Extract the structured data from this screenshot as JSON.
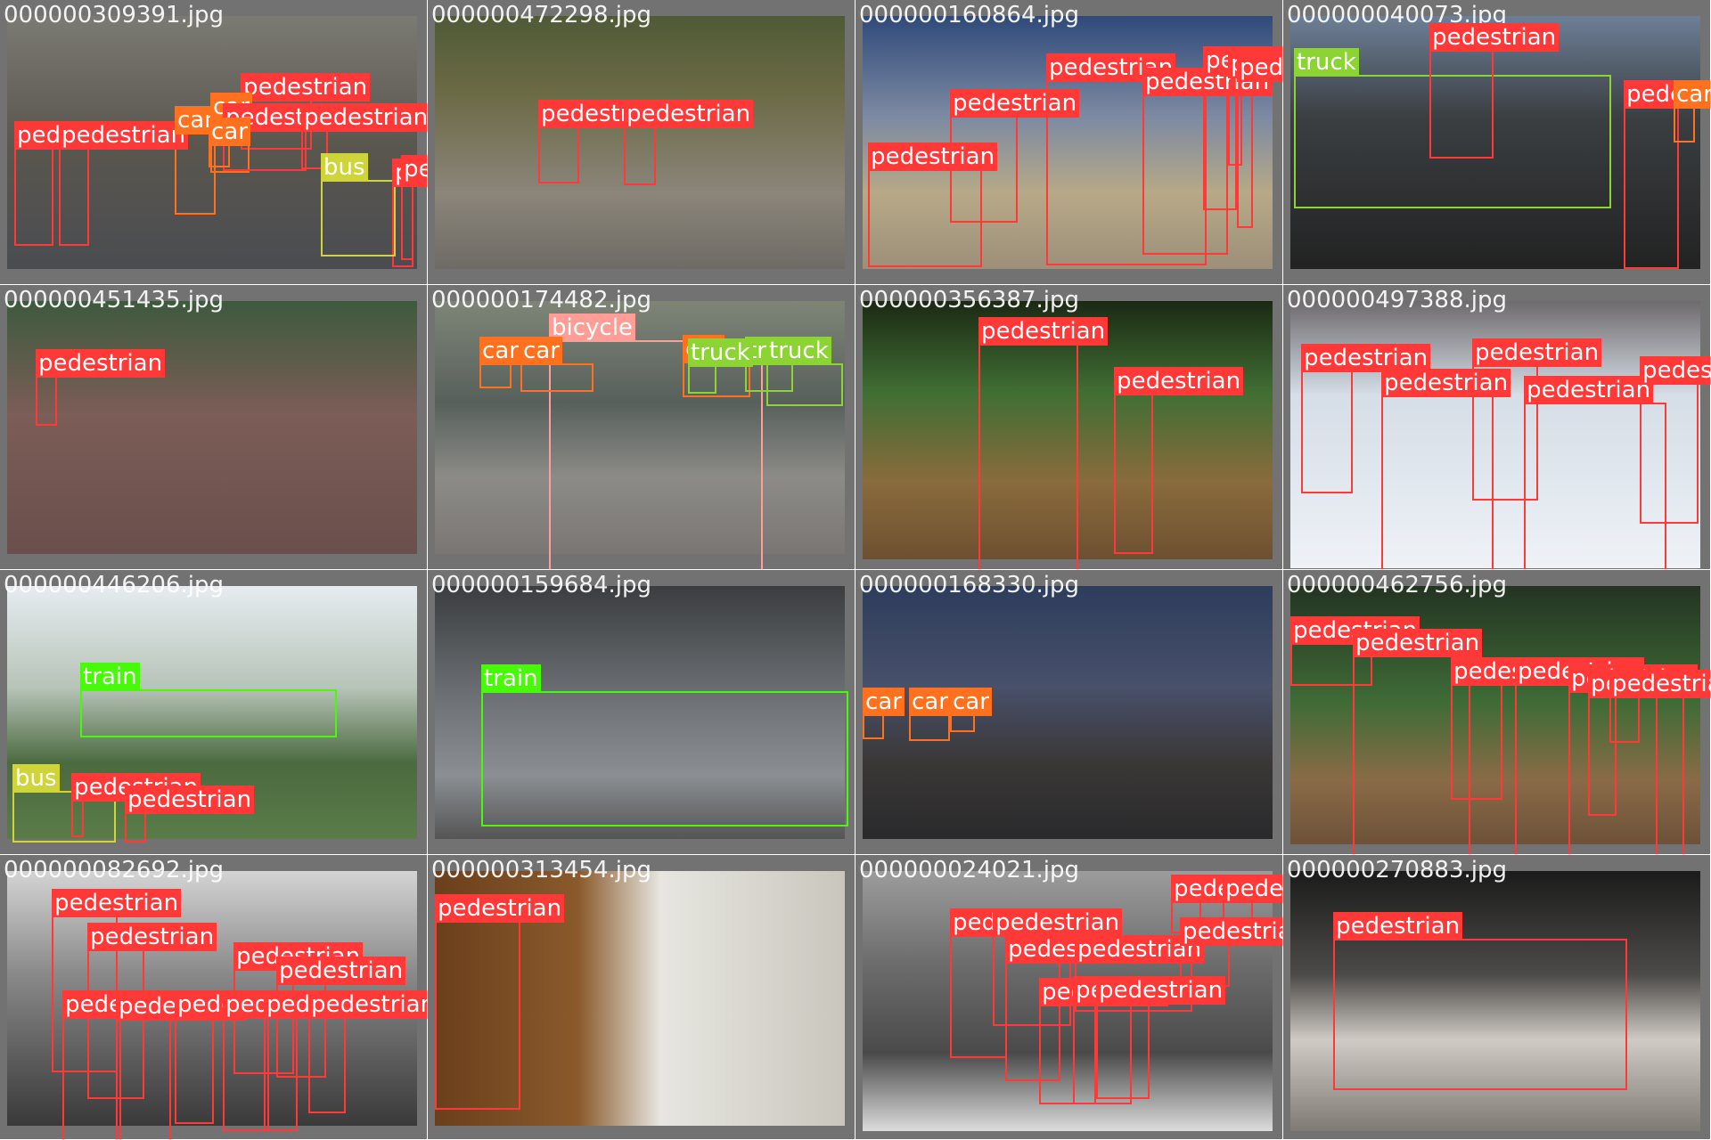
{
  "colors": {
    "pedestrian": "#ff3838",
    "car": "#ff701f",
    "truck": "#8bd434",
    "bus": "#ced43a",
    "train": "#48f90a",
    "bicycle": "#ff9d97",
    "tile_background": "#727272"
  },
  "tiles": [
    {
      "filename": "000000309391.jpg",
      "photo": "street",
      "boxes": [
        {
          "label": "pedestrian"
        },
        {
          "label": "pedestrian"
        },
        {
          "label": "car"
        },
        {
          "label": "pedestrian"
        },
        {
          "label": "car"
        },
        {
          "label": "pedestrian"
        },
        {
          "label": "pedestrian"
        },
        {
          "label": "car"
        },
        {
          "label": "pedestrian"
        },
        {
          "label": "bus"
        },
        {
          "label": "pedestrian"
        }
      ]
    },
    {
      "filename": "000000472298.jpg",
      "photo": "river",
      "boxes": [
        {
          "label": "pedestrian"
        },
        {
          "label": "pedestrian"
        }
      ]
    },
    {
      "filename": "000000160864.jpg",
      "photo": "field",
      "boxes": [
        {
          "label": "pedestrian"
        },
        {
          "label": "pedestrian"
        },
        {
          "label": "pedestrian"
        },
        {
          "label": "pedestrian"
        },
        {
          "label": "pedestrian"
        },
        {
          "label": "pedestrian"
        },
        {
          "label": "pedestrian"
        }
      ]
    },
    {
      "filename": "000000040073.jpg",
      "photo": "truck",
      "boxes": [
        {
          "label": "truck"
        },
        {
          "label": "pedestrian"
        },
        {
          "label": "pedestrian"
        },
        {
          "label": "car"
        }
      ]
    },
    {
      "filename": "000000451435.jpg",
      "photo": "court",
      "boxes": [
        {
          "label": "pedestrian"
        }
      ]
    },
    {
      "filename": "000000174482.jpg",
      "photo": "bike",
      "boxes": [
        {
          "label": "bicycle"
        },
        {
          "label": "car"
        },
        {
          "label": "car"
        },
        {
          "label": "car"
        },
        {
          "label": "truck"
        },
        {
          "label": "truck"
        },
        {
          "label": "truck"
        }
      ]
    },
    {
      "filename": "000000356387.jpg",
      "photo": "base",
      "boxes": [
        {
          "label": "pedestrian"
        },
        {
          "label": "pedestrian"
        }
      ]
    },
    {
      "filename": "000000497388.jpg",
      "photo": "snow",
      "boxes": [
        {
          "label": "pedestrian"
        },
        {
          "label": "pedestrian"
        },
        {
          "label": "pedestrian"
        },
        {
          "label": "pedestrian"
        },
        {
          "label": "pedestrian"
        }
      ]
    },
    {
      "filename": "000000446206.jpg",
      "photo": "train1",
      "boxes": [
        {
          "label": "train"
        },
        {
          "label": "bus"
        },
        {
          "label": "pedestrian"
        },
        {
          "label": "pedestrian"
        }
      ]
    },
    {
      "filename": "000000159684.jpg",
      "photo": "train2",
      "boxes": [
        {
          "label": "train"
        }
      ]
    },
    {
      "filename": "000000168330.jpg",
      "photo": "dusk",
      "boxes": [
        {
          "label": "car"
        },
        {
          "label": "car"
        },
        {
          "label": "car"
        }
      ]
    },
    {
      "filename": "000000462756.jpg",
      "photo": "dodg",
      "boxes": [
        {
          "label": "pedestrian"
        },
        {
          "label": "pedestrian"
        },
        {
          "label": "pedestrian"
        },
        {
          "label": "pedestrian"
        },
        {
          "label": "pedestrian"
        },
        {
          "label": "pedestrian"
        },
        {
          "label": "pedestrian"
        }
      ]
    },
    {
      "filename": "000000082692.jpg",
      "photo": "bw",
      "boxes": [
        {
          "label": "pedestrian"
        },
        {
          "label": "pedestrian"
        },
        {
          "label": "pedestrian"
        },
        {
          "label": "pedestrian"
        },
        {
          "label": "pedestrian"
        },
        {
          "label": "pedestrian"
        },
        {
          "label": "pedestrian"
        },
        {
          "label": "pedestrian"
        },
        {
          "label": "pedestrian"
        },
        {
          "label": "pedestrian"
        }
      ]
    },
    {
      "filename": "000000313454.jpg",
      "photo": "talk",
      "boxes": [
        {
          "label": "pedestrian"
        }
      ]
    },
    {
      "filename": "000000024021.jpg",
      "photo": "bw2",
      "boxes": [
        {
          "label": "pedestrian"
        },
        {
          "label": "pedestrian"
        },
        {
          "label": "pedestrian"
        },
        {
          "label": "pedestrian"
        },
        {
          "label": "pedestrian"
        },
        {
          "label": "pedestrian"
        },
        {
          "label": "pedestrian"
        },
        {
          "label": "pedestrian"
        },
        {
          "label": "pedestrian"
        },
        {
          "label": "pedestrian"
        }
      ]
    },
    {
      "filename": "000000270883.jpg",
      "photo": "bed",
      "boxes": [
        {
          "label": "pedestrian"
        },
        {
          "label": "pedestrian"
        }
      ]
    }
  ]
}
